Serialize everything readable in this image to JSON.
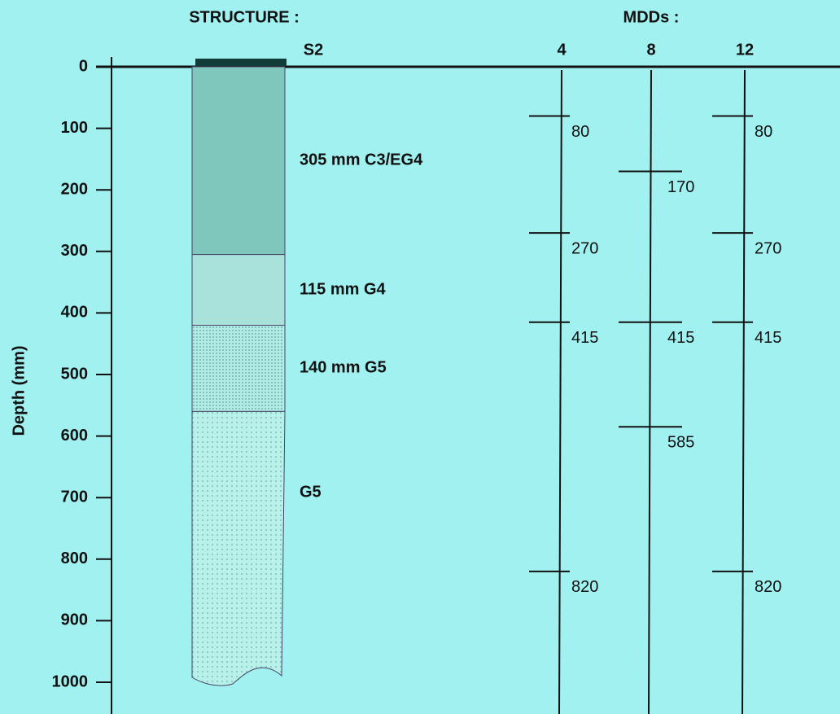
{
  "chart_data": {
    "type": "depth",
    "ylabel": "Depth (mm)",
    "ylim": [
      0,
      1000
    ],
    "yticks": [
      0,
      100,
      200,
      300,
      400,
      500,
      600,
      700,
      800,
      900,
      1000
    ],
    "structure_title": "STRUCTURE :",
    "structure_name": "S2",
    "layers": [
      {
        "label": "305 mm C3/EG4",
        "top": 0,
        "bottom": 305,
        "color": "#7fc6bd"
      },
      {
        "label": "115 mm G4",
        "top": 305,
        "bottom": 420,
        "color": "#a8e2db"
      },
      {
        "label": "140 mm G5",
        "top": 420,
        "bottom": 560,
        "color": "#b3ece6",
        "dots": "dense"
      },
      {
        "label": "G5",
        "top": 560,
        "bottom": 1000,
        "color": "#b8f0ea",
        "dots": "sparse"
      }
    ],
    "mdd_title": "MDDs :",
    "columns": [
      {
        "name": "4",
        "markers": [
          80,
          270,
          415,
          820
        ]
      },
      {
        "name": "8",
        "markers": [
          170,
          415,
          585
        ]
      },
      {
        "name": "12",
        "markers": [
          80,
          270,
          415,
          820
        ]
      }
    ]
  }
}
